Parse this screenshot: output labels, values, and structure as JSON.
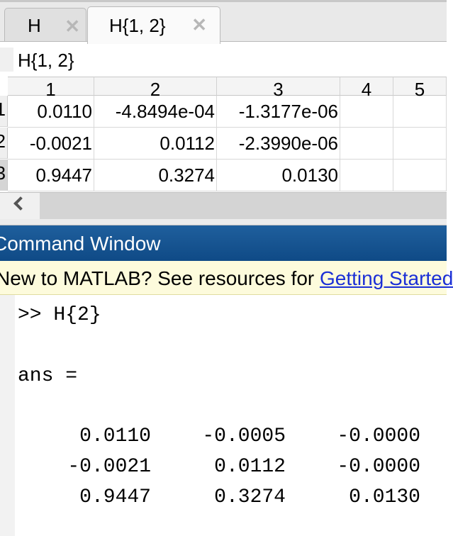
{
  "tabs": [
    {
      "label": "H",
      "active": false
    },
    {
      "label": "H{1, 2}",
      "active": true
    }
  ],
  "variable_name": "H{1, 2}",
  "table": {
    "column_headers": [
      "1",
      "2",
      "3",
      "4",
      "5"
    ],
    "row_headers": [
      "1",
      "2",
      "3"
    ],
    "rows": [
      [
        "0.0110",
        "-4.8494e-04",
        "-1.3177e-06",
        "",
        ""
      ],
      [
        "-0.0021",
        "0.0112",
        "-2.3990e-06",
        "",
        ""
      ],
      [
        "0.9447",
        "0.3274",
        "0.0130",
        "",
        ""
      ]
    ]
  },
  "command_window": {
    "title": "Command Window",
    "notice_text": "New to MATLAB? See resources for ",
    "notice_link": "Getting Started",
    "command": ">> H{2}",
    "ans_label": "ans =",
    "output_rows": [
      [
        "0.0110",
        "-0.0005",
        "-0.0000"
      ],
      [
        "-0.0021",
        "0.0112",
        "-0.0000"
      ],
      [
        "0.9447",
        "0.3274",
        "0.0130"
      ]
    ]
  },
  "colors": {
    "title_bar": "#0f4a86",
    "notice_bg": "#fdfbdc",
    "link": "#1b2fd6"
  }
}
